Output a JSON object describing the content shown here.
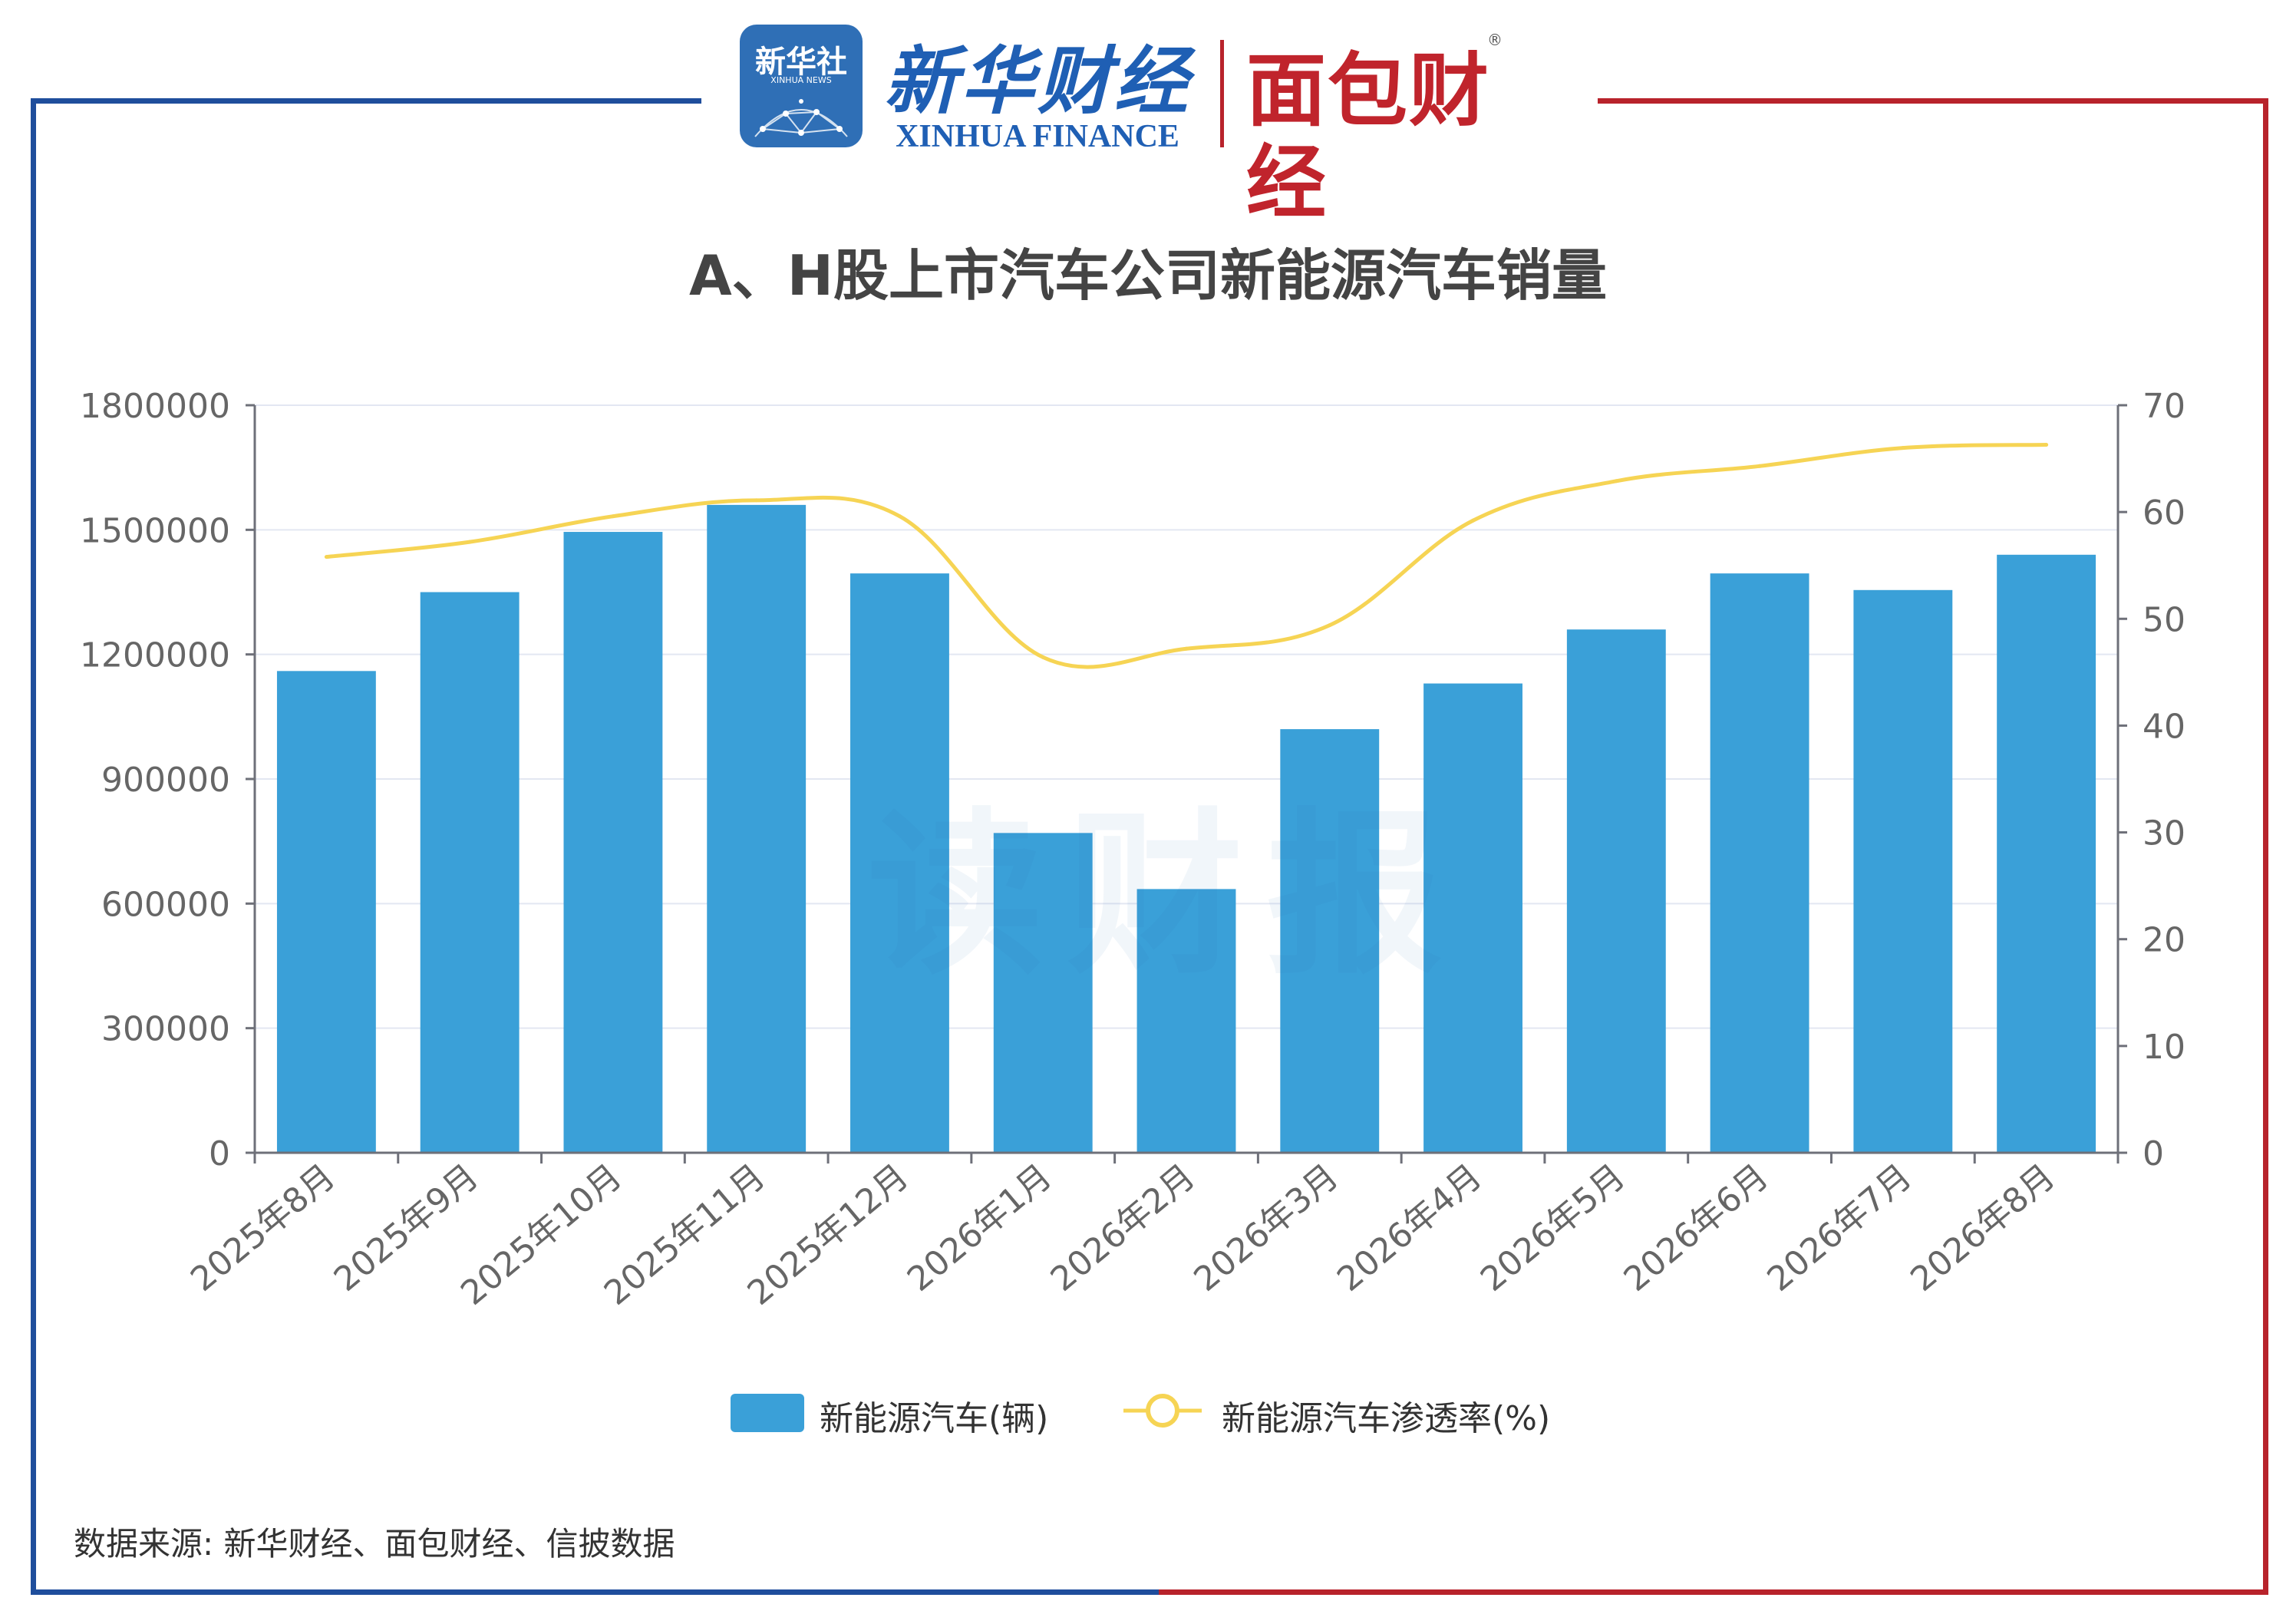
{
  "brand": {
    "xinhua_badge_text": "新华社",
    "xinhua_badge_sub": "XINHUA NEWS",
    "xinhua_finance_cn": "新华财经",
    "xinhua_finance_en": "XINHUA FINANCE",
    "mianbao_logo": "面包财经",
    "registered_mark": "®",
    "frame_left_color": "#1f4e9c",
    "frame_right_color": "#b8232b"
  },
  "watermark": "读财报",
  "source": "数据来源: 新华财经、面包财经、信披数据",
  "chart_data": {
    "type": "bar",
    "title": "A、H股上市汽车公司新能源汽车销量",
    "categories": [
      "2025年8月",
      "2025年9月",
      "2025年10月",
      "2025年11月",
      "2025年12月",
      "2026年1月",
      "2026年2月",
      "2026年3月",
      "2026年4月",
      "2026年5月",
      "2026年6月",
      "2026年7月",
      "2026年8月"
    ],
    "series": [
      {
        "name": "新能源汽车(辆)",
        "type": "bar",
        "axis": "left",
        "color": "#3aa0d8",
        "values": [
          1160000,
          1350000,
          1495000,
          1560000,
          1395000,
          770000,
          635000,
          1020000,
          1130000,
          1260000,
          1395000,
          1355000,
          1440000
        ]
      },
      {
        "name": "新能源汽车渗透率(%)",
        "type": "line",
        "axis": "right",
        "color": "#f6d454",
        "values": [
          55.8,
          57.2,
          59.6,
          61.1,
          59.6,
          46.4,
          47.2,
          49.4,
          59.2,
          62.9,
          64.3,
          66.0,
          66.3
        ]
      }
    ],
    "y_left": {
      "min": 0,
      "max": 1800000,
      "ticks": [
        0,
        300000,
        600000,
        900000,
        1200000,
        1500000,
        1800000
      ]
    },
    "y_right": {
      "min": 0,
      "max": 70,
      "ticks": [
        0,
        10,
        20,
        30,
        40,
        50,
        60,
        70
      ]
    },
    "grid": true,
    "legend_position": "bottom"
  }
}
